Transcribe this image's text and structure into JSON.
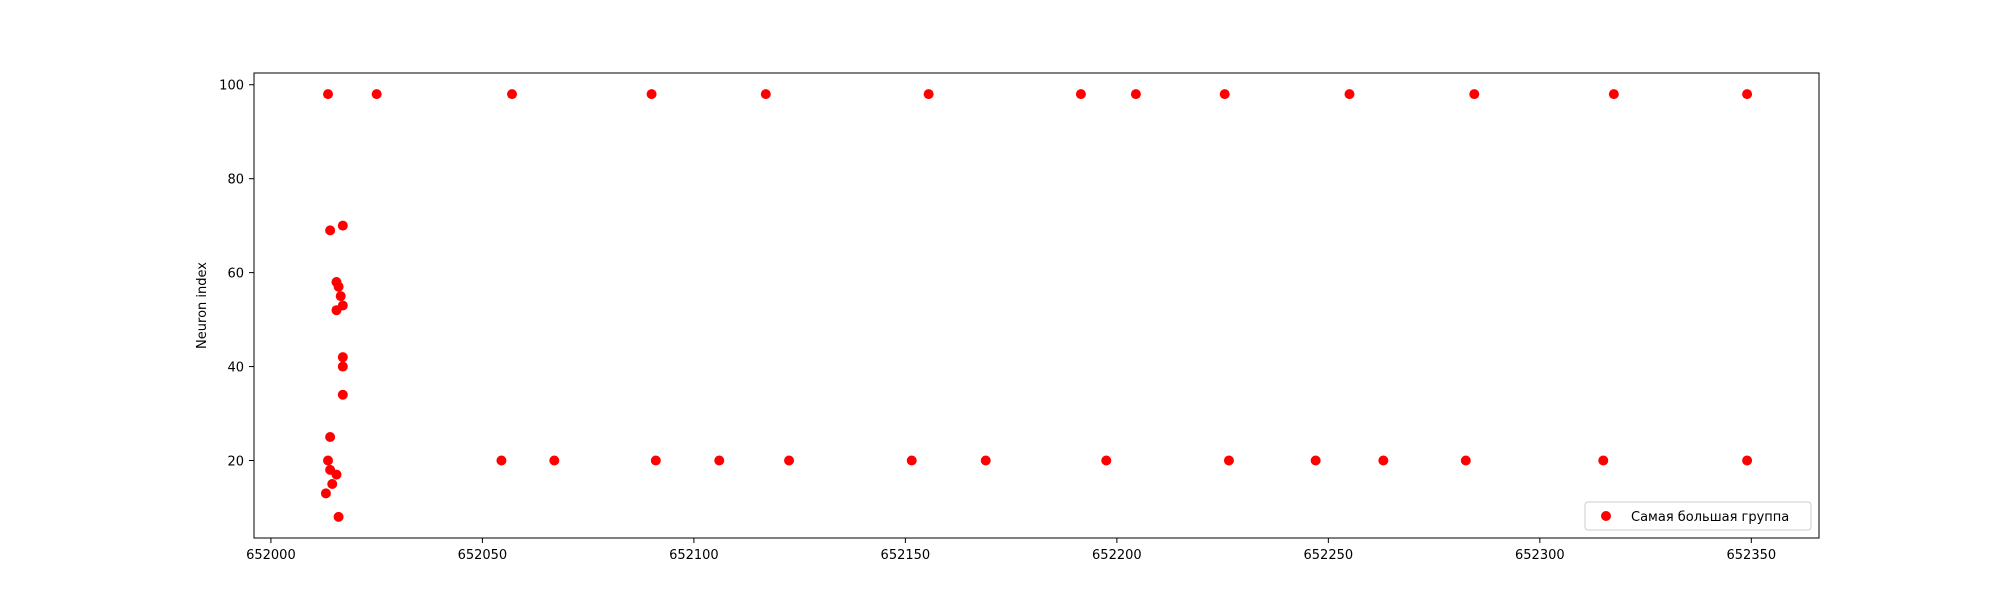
{
  "chart_data": {
    "type": "scatter",
    "title": "",
    "xlabel": "",
    "ylabel": "Neuron index",
    "xlim": [
      651996,
      652366
    ],
    "ylim": [
      3.5,
      102.5
    ],
    "xticks": [
      652000,
      652050,
      652100,
      652150,
      652200,
      652250,
      652300,
      652350
    ],
    "yticks": [
      20,
      40,
      60,
      80,
      100
    ],
    "grid": false,
    "legend_position": "lower-right",
    "series": [
      {
        "name": "Самая большая группа",
        "color": "#ff0000",
        "marker": "circle",
        "points": [
          {
            "x": 652013.5,
            "y": 98
          },
          {
            "x": 652025,
            "y": 98
          },
          {
            "x": 652057,
            "y": 98
          },
          {
            "x": 652090,
            "y": 98
          },
          {
            "x": 652117,
            "y": 98
          },
          {
            "x": 652155.5,
            "y": 98
          },
          {
            "x": 652191.5,
            "y": 98
          },
          {
            "x": 652204.5,
            "y": 98
          },
          {
            "x": 652225.5,
            "y": 98
          },
          {
            "x": 652255,
            "y": 98
          },
          {
            "x": 652284.5,
            "y": 98
          },
          {
            "x": 652317.5,
            "y": 98
          },
          {
            "x": 652349,
            "y": 98
          },
          {
            "x": 652017,
            "y": 70
          },
          {
            "x": 652014,
            "y": 69
          },
          {
            "x": 652015.5,
            "y": 58
          },
          {
            "x": 652016,
            "y": 57
          },
          {
            "x": 652016.5,
            "y": 55
          },
          {
            "x": 652017,
            "y": 53
          },
          {
            "x": 652015.5,
            "y": 52
          },
          {
            "x": 652017,
            "y": 42
          },
          {
            "x": 652017,
            "y": 40
          },
          {
            "x": 652017,
            "y": 34
          },
          {
            "x": 652014,
            "y": 25
          },
          {
            "x": 652013.5,
            "y": 20
          },
          {
            "x": 652014,
            "y": 18
          },
          {
            "x": 652015.5,
            "y": 17
          },
          {
            "x": 652014.5,
            "y": 15
          },
          {
            "x": 652013,
            "y": 13
          },
          {
            "x": 652016,
            "y": 8
          },
          {
            "x": 652054.5,
            "y": 20
          },
          {
            "x": 652067,
            "y": 20
          },
          {
            "x": 652091,
            "y": 20
          },
          {
            "x": 652106,
            "y": 20
          },
          {
            "x": 652122.5,
            "y": 20
          },
          {
            "x": 652151.5,
            "y": 20
          },
          {
            "x": 652169,
            "y": 20
          },
          {
            "x": 652197.5,
            "y": 20
          },
          {
            "x": 652226.5,
            "y": 20
          },
          {
            "x": 652247,
            "y": 20
          },
          {
            "x": 652263,
            "y": 20
          },
          {
            "x": 652282.5,
            "y": 20
          },
          {
            "x": 652315,
            "y": 20
          },
          {
            "x": 652349,
            "y": 20
          }
        ]
      }
    ]
  }
}
